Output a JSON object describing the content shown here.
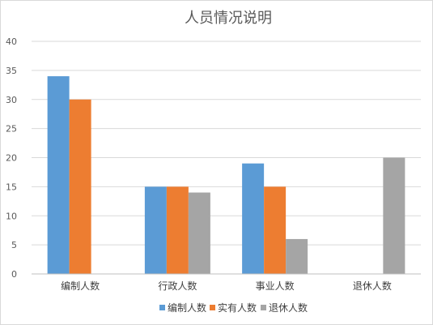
{
  "chart_data": {
    "type": "bar",
    "title": "人员情况说明",
    "categories": [
      "编制人数",
      "行政人数",
      "事业人数",
      "退休人数"
    ],
    "series": [
      {
        "name": "编制人数",
        "color": "#5b9bd5",
        "values": [
          34,
          15,
          19,
          0
        ]
      },
      {
        "name": "实有人数",
        "color": "#ed7d31",
        "values": [
          30,
          15,
          15,
          0
        ]
      },
      {
        "name": "退休人数",
        "color": "#a5a5a5",
        "values": [
          0,
          14,
          6,
          20
        ]
      }
    ],
    "ylim": [
      0,
      40
    ],
    "yticks": [
      0,
      5,
      10,
      15,
      20,
      25,
      30,
      35,
      40
    ],
    "grid": true,
    "legend": "bottom"
  }
}
